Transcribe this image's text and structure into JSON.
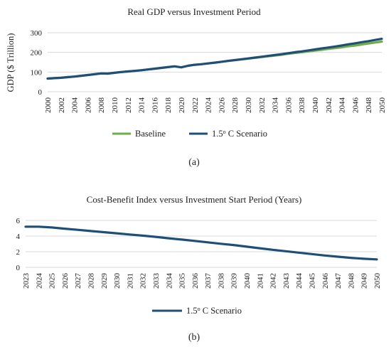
{
  "figure": {
    "caption_a": "(a)",
    "caption_b": "(b)"
  },
  "chart_data": [
    {
      "type": "line",
      "title": "Real GDP versus Investment Period",
      "xlabel": "",
      "ylabel": "GDP ($ Trillion)",
      "ylim": [
        0,
        300
      ],
      "yticks": [
        0,
        100,
        200,
        300
      ],
      "x": [
        2000,
        2001,
        2002,
        2003,
        2004,
        2005,
        2006,
        2007,
        2008,
        2009,
        2010,
        2011,
        2012,
        2013,
        2014,
        2015,
        2016,
        2017,
        2018,
        2019,
        2020,
        2021,
        2022,
        2023,
        2024,
        2025,
        2026,
        2027,
        2028,
        2029,
        2030,
        2031,
        2032,
        2033,
        2034,
        2035,
        2036,
        2037,
        2038,
        2039,
        2040,
        2041,
        2042,
        2043,
        2044,
        2045,
        2046,
        2047,
        2048,
        2049,
        2050
      ],
      "xtick_labels": [
        "2000",
        "2002",
        "2004",
        "2006",
        "2008",
        "2010",
        "2012",
        "2014",
        "2016",
        "2018",
        "2020",
        "2022",
        "2024",
        "2026",
        "2028",
        "2030",
        "2032",
        "2034",
        "2036",
        "2038",
        "2040",
        "2042",
        "2044",
        "2046",
        "2048",
        "2050"
      ],
      "series": [
        {
          "name": "Baseline",
          "color": "#70ad47",
          "values": [
            67,
            69,
            71,
            74,
            77,
            81,
            85,
            89,
            93,
            92,
            96,
            100,
            103,
            106,
            109,
            113,
            117,
            121,
            125,
            129,
            124,
            132,
            137,
            140,
            144,
            148,
            152,
            156,
            160,
            164,
            168,
            172,
            176,
            180,
            184,
            188,
            193,
            197,
            201,
            205,
            209,
            213,
            218,
            222,
            226,
            231,
            235,
            240,
            245,
            250,
            255
          ]
        },
        {
          "name": "1.5o C Scenario",
          "color": "#1f4e79",
          "values": [
            67,
            69,
            71,
            74,
            77,
            81,
            85,
            89,
            93,
            92,
            96,
            100,
            103,
            106,
            109,
            113,
            117,
            121,
            125,
            129,
            124,
            132,
            137,
            140,
            144,
            148,
            152,
            157,
            161,
            165,
            169,
            174,
            178,
            182,
            187,
            191,
            196,
            201,
            205,
            210,
            215,
            220,
            225,
            230,
            235,
            241,
            246,
            252,
            257,
            263,
            269
          ]
        }
      ],
      "legend_position": "bottom",
      "grid": true
    },
    {
      "type": "line",
      "title": "Cost-Benefit Index versus Investment Start Period (Years)",
      "xlabel": "",
      "ylabel": "",
      "ylim": [
        0,
        6
      ],
      "yticks": [
        0,
        2,
        4,
        6
      ],
      "x": [
        2023,
        2024,
        2025,
        2026,
        2027,
        2028,
        2029,
        2030,
        2031,
        2032,
        2033,
        2034,
        2035,
        2036,
        2037,
        2038,
        2039,
        2040,
        2041,
        2042,
        2043,
        2044,
        2045,
        2046,
        2047,
        2048,
        2049,
        2050
      ],
      "xtick_labels": [
        "2023",
        "2024",
        "2025",
        "2026",
        "2027",
        "2028",
        "2029",
        "2030",
        "2031",
        "2032",
        "2033",
        "2034",
        "2035",
        "2036",
        "2037",
        "2038",
        "2039",
        "2040",
        "2041",
        "2042",
        "2043",
        "2044",
        "2045",
        "2046",
        "2047",
        "2048",
        "2049",
        "2050"
      ],
      "series": [
        {
          "name": "1.5o C Scenario",
          "color": "#1f4e79",
          "values": [
            5.2,
            5.2,
            5.1,
            4.95,
            4.8,
            4.65,
            4.5,
            4.35,
            4.2,
            4.05,
            3.9,
            3.72,
            3.55,
            3.38,
            3.2,
            3.02,
            2.85,
            2.65,
            2.45,
            2.25,
            2.06,
            1.88,
            1.7,
            1.52,
            1.36,
            1.22,
            1.1,
            1.02
          ]
        }
      ],
      "legend_position": "bottom",
      "grid": true
    }
  ]
}
